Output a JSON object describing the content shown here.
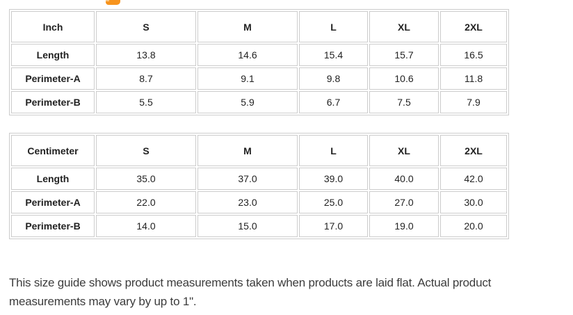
{
  "page": {
    "accent_color": "#f7941e",
    "table_border_color": "#cccccc",
    "text_color": "#222222"
  },
  "tables": [
    {
      "unit_label": "Inch",
      "size_headers": [
        "S",
        "M",
        "L",
        "XL",
        "2XL"
      ],
      "rows": [
        {
          "label": "Length",
          "values": [
            "13.8",
            "14.6",
            "15.4",
            "15.7",
            "16.5"
          ]
        },
        {
          "label": "Perimeter-A",
          "values": [
            "8.7",
            "9.1",
            "9.8",
            "10.6",
            "11.8"
          ]
        },
        {
          "label": "Perimeter-B",
          "values": [
            "5.5",
            "5.9",
            "6.7",
            "7.5",
            "7.9"
          ]
        }
      ]
    },
    {
      "unit_label": "Centimeter",
      "size_headers": [
        "S",
        "M",
        "L",
        "XL",
        "2XL"
      ],
      "rows": [
        {
          "label": "Length",
          "values": [
            "35.0",
            "37.0",
            "39.0",
            "40.0",
            "42.0"
          ]
        },
        {
          "label": "Perimeter-A",
          "values": [
            "22.0",
            "23.0",
            "25.0",
            "27.0",
            "30.0"
          ]
        },
        {
          "label": "Perimeter-B",
          "values": [
            "14.0",
            "15.0",
            "17.0",
            "19.0",
            "20.0"
          ]
        }
      ]
    }
  ],
  "footnote": "This size guide shows product measurements taken when products are laid flat. Actual product measurements may vary by up to 1\"."
}
